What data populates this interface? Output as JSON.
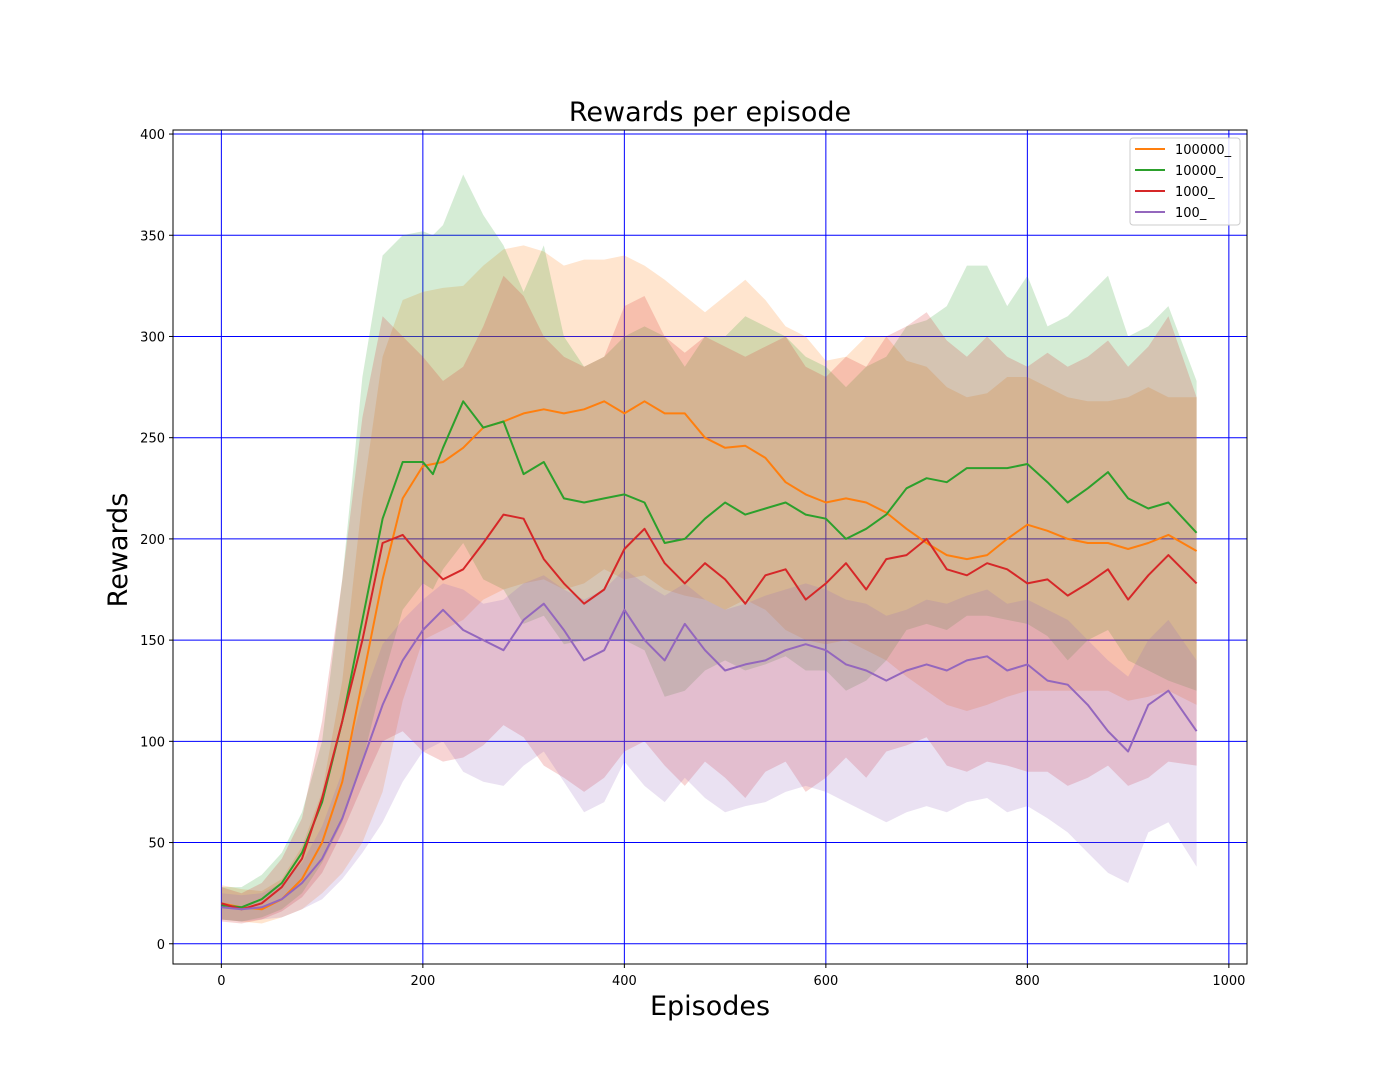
{
  "chart_data": {
    "type": "line",
    "title": "Rewards per episode",
    "xlabel": "Episodes",
    "ylabel": "Rewards",
    "xlim": [
      -48,
      1018
    ],
    "ylim": [
      -10,
      402
    ],
    "xticks": [
      0,
      200,
      400,
      600,
      800,
      1000
    ],
    "yticks": [
      0,
      50,
      100,
      150,
      200,
      250,
      300,
      350,
      400
    ],
    "grid": true,
    "grid_color": "#0000ff",
    "legend_position": "top-right",
    "series": [
      {
        "name": "100000_",
        "color": "#ff7f0e",
        "x": [
          0,
          20,
          40,
          60,
          80,
          100,
          120,
          140,
          160,
          180,
          200,
          220,
          240,
          260,
          280,
          300,
          320,
          340,
          360,
          380,
          400,
          420,
          440,
          460,
          480,
          500,
          520,
          540,
          560,
          580,
          600,
          620,
          640,
          660,
          680,
          700,
          720,
          740,
          760,
          780,
          800,
          820,
          840,
          860,
          880,
          900,
          920,
          940,
          968
        ],
        "values": [
          20,
          18,
          17,
          22,
          32,
          50,
          80,
          130,
          180,
          220,
          236,
          238,
          245,
          255,
          258,
          262,
          264,
          262,
          264,
          268,
          262,
          268,
          262,
          262,
          250,
          245,
          246,
          240,
          228,
          222,
          218,
          220,
          218,
          213,
          205,
          198,
          192,
          190,
          192,
          200,
          207,
          204,
          200,
          198,
          198,
          195,
          198,
          202,
          194
        ],
        "upper": [
          29,
          27,
          26,
          32,
          48,
          75,
          130,
          220,
          290,
          318,
          322,
          324,
          325,
          335,
          343,
          345,
          342,
          335,
          338,
          338,
          340,
          335,
          328,
          320,
          312,
          320,
          328,
          318,
          305,
          300,
          288,
          290,
          300,
          300,
          288,
          285,
          275,
          270,
          272,
          280,
          280,
          275,
          270,
          268,
          268,
          270,
          275,
          270,
          270
        ],
        "lower": [
          12,
          11,
          10,
          13,
          17,
          25,
          35,
          50,
          75,
          120,
          150,
          155,
          160,
          170,
          175,
          178,
          180,
          175,
          178,
          185,
          180,
          182,
          175,
          172,
          170,
          165,
          170,
          165,
          155,
          150,
          148,
          150,
          145,
          140,
          132,
          125,
          118,
          115,
          118,
          122,
          125,
          125,
          125,
          125,
          125,
          120,
          122,
          125,
          118
        ]
      },
      {
        "name": "10000_",
        "color": "#2ca02c",
        "x": [
          0,
          20,
          40,
          60,
          80,
          100,
          120,
          140,
          160,
          180,
          200,
          210,
          220,
          240,
          260,
          280,
          300,
          320,
          340,
          360,
          380,
          400,
          420,
          440,
          460,
          480,
          500,
          520,
          540,
          560,
          580,
          600,
          620,
          640,
          660,
          680,
          700,
          720,
          740,
          760,
          780,
          800,
          820,
          840,
          860,
          880,
          900,
          920,
          940,
          968
        ],
        "values": [
          19,
          18,
          22,
          30,
          45,
          70,
          110,
          160,
          210,
          238,
          238,
          232,
          245,
          268,
          255,
          258,
          232,
          238,
          220,
          218,
          220,
          222,
          218,
          198,
          200,
          210,
          218,
          212,
          215,
          218,
          212,
          210,
          200,
          205,
          212,
          225,
          230,
          228,
          235,
          235,
          235,
          237,
          228,
          218,
          225,
          233,
          220,
          215,
          218,
          203
        ],
        "upper": [
          28,
          28,
          34,
          45,
          65,
          100,
          180,
          280,
          340,
          350,
          352,
          350,
          355,
          380,
          360,
          345,
          322,
          345,
          300,
          285,
          290,
          300,
          305,
          300,
          285,
          300,
          300,
          310,
          305,
          300,
          290,
          285,
          275,
          285,
          290,
          305,
          308,
          315,
          335,
          335,
          315,
          330,
          305,
          310,
          320,
          330,
          300,
          305,
          315,
          278
        ],
        "lower": [
          12,
          11,
          13,
          17,
          25,
          40,
          60,
          90,
          130,
          165,
          178,
          175,
          185,
          198,
          180,
          175,
          158,
          162,
          148,
          150,
          150,
          150,
          145,
          122,
          125,
          135,
          140,
          135,
          138,
          142,
          135,
          135,
          125,
          130,
          140,
          155,
          158,
          155,
          162,
          162,
          160,
          158,
          152,
          140,
          150,
          155,
          140,
          135,
          130,
          125
        ]
      },
      {
        "name": "1000_",
        "color": "#d62728",
        "x": [
          0,
          20,
          40,
          60,
          80,
          100,
          120,
          140,
          160,
          180,
          200,
          220,
          240,
          260,
          280,
          300,
          320,
          340,
          360,
          380,
          400,
          420,
          440,
          460,
          480,
          500,
          520,
          540,
          560,
          580,
          600,
          620,
          640,
          660,
          680,
          700,
          720,
          740,
          760,
          780,
          800,
          820,
          840,
          860,
          880,
          900,
          920,
          940,
          968
        ],
        "values": [
          20,
          17,
          20,
          28,
          42,
          72,
          110,
          150,
          198,
          202,
          190,
          180,
          185,
          198,
          212,
          210,
          190,
          178,
          168,
          175,
          195,
          205,
          188,
          178,
          188,
          180,
          168,
          182,
          185,
          170,
          178,
          188,
          175,
          190,
          192,
          200,
          185,
          182,
          188,
          185,
          178,
          180,
          172,
          178,
          185,
          170,
          182,
          192,
          178
        ],
        "upper": [
          28,
          25,
          30,
          42,
          62,
          110,
          180,
          260,
          310,
          300,
          290,
          278,
          285,
          305,
          330,
          320,
          300,
          290,
          285,
          290,
          315,
          320,
          300,
          292,
          300,
          295,
          290,
          295,
          300,
          285,
          280,
          290,
          285,
          300,
          305,
          312,
          298,
          290,
          300,
          290,
          285,
          292,
          285,
          290,
          298,
          285,
          295,
          310,
          270
        ],
        "lower": [
          11,
          10,
          12,
          16,
          23,
          35,
          55,
          78,
          100,
          105,
          95,
          90,
          92,
          98,
          108,
          102,
          88,
          82,
          75,
          82,
          95,
          100,
          88,
          78,
          90,
          82,
          72,
          85,
          90,
          75,
          82,
          92,
          82,
          95,
          98,
          102,
          88,
          85,
          90,
          88,
          85,
          85,
          78,
          82,
          88,
          78,
          82,
          90,
          88
        ]
      },
      {
        "name": "100_",
        "color": "#9467bd",
        "x": [
          0,
          20,
          40,
          60,
          80,
          100,
          120,
          140,
          160,
          180,
          200,
          220,
          240,
          260,
          280,
          300,
          320,
          340,
          360,
          380,
          400,
          420,
          440,
          460,
          480,
          500,
          520,
          540,
          560,
          580,
          600,
          620,
          640,
          660,
          680,
          700,
          720,
          740,
          760,
          780,
          800,
          820,
          840,
          860,
          880,
          900,
          920,
          940,
          968
        ],
        "values": [
          18,
          17,
          18,
          22,
          30,
          42,
          62,
          90,
          118,
          140,
          155,
          165,
          155,
          150,
          145,
          160,
          168,
          155,
          140,
          145,
          165,
          150,
          140,
          158,
          145,
          135,
          138,
          140,
          145,
          148,
          145,
          138,
          135,
          130,
          135,
          138,
          135,
          140,
          142,
          135,
          138,
          130,
          128,
          118,
          105,
          95,
          118,
          125,
          105
        ],
        "upper": [
          25,
          24,
          25,
          30,
          40,
          58,
          85,
          120,
          148,
          160,
          170,
          178,
          175,
          168,
          170,
          178,
          182,
          175,
          170,
          175,
          185,
          178,
          172,
          178,
          170,
          165,
          168,
          172,
          175,
          178,
          175,
          170,
          168,
          162,
          165,
          170,
          168,
          172,
          175,
          168,
          170,
          165,
          160,
          150,
          140,
          132,
          150,
          160,
          140
        ],
        "lower": [
          12,
          11,
          12,
          13,
          17,
          22,
          32,
          45,
          60,
          80,
          95,
          100,
          85,
          80,
          78,
          88,
          95,
          80,
          65,
          70,
          90,
          78,
          70,
          82,
          72,
          65,
          68,
          70,
          75,
          78,
          75,
          70,
          65,
          60,
          65,
          68,
          65,
          70,
          72,
          65,
          68,
          62,
          55,
          45,
          35,
          30,
          55,
          60,
          38
        ]
      }
    ]
  }
}
